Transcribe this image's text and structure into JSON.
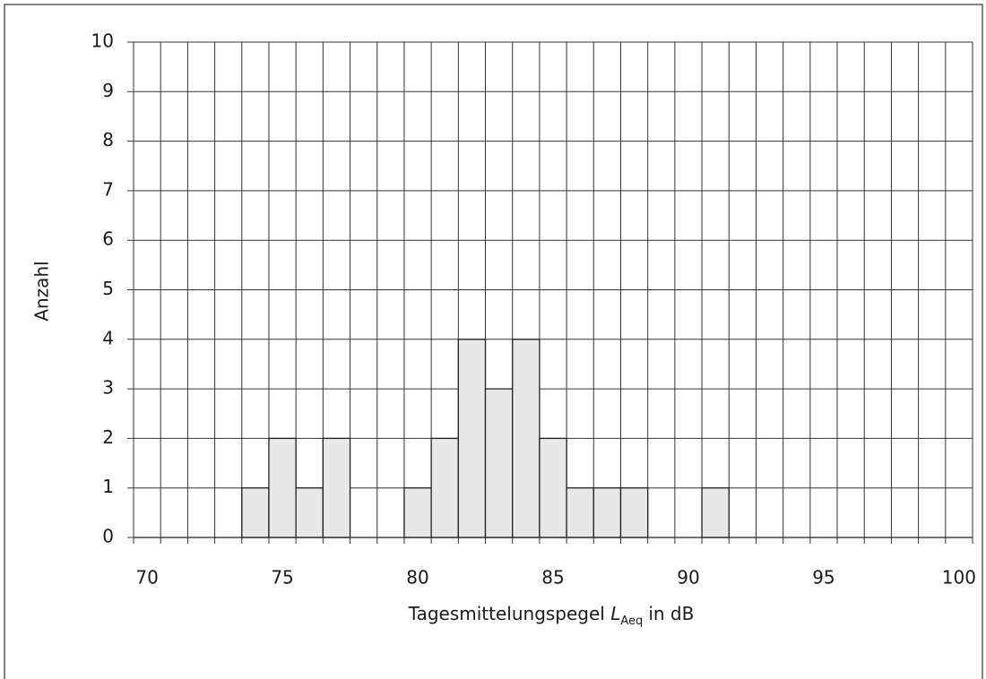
{
  "chart_data": {
    "type": "histogram",
    "x_label": {
      "text": "Tagesmittelungspegel",
      "symbol": "L",
      "subscript": "Aeq",
      "unit": "in dB"
    },
    "y_label": "Anzahl",
    "bins": [
      73.5,
      74.5,
      75.5,
      76.5,
      77.5,
      78.5,
      79.5,
      80.5,
      81.5,
      82.5,
      83.5,
      84.5,
      85.5,
      86.5,
      87.5,
      88.5,
      89.5,
      90.5,
      91.5
    ],
    "values": [
      1,
      2,
      1,
      2,
      0,
      0,
      1,
      2,
      4,
      3,
      4,
      2,
      1,
      1,
      1,
      0,
      0,
      1
    ],
    "color": "#e8e8e8",
    "xlim": [
      69.5,
      100.5
    ],
    "xticks": [
      70,
      75,
      80,
      85,
      90,
      95,
      100
    ],
    "xminorticks": [
      69.5,
      70.5,
      71.5,
      72.5,
      73.5,
      74.5,
      75.5,
      76.5,
      77.5,
      78.5,
      79.5,
      80.5,
      81.5,
      82.5,
      83.5,
      84.5,
      85.5,
      86.5,
      87.5,
      88.5,
      89.5,
      90.5,
      91.5,
      92.5,
      93.5,
      94.5,
      95.5,
      96.5,
      97.5,
      98.5,
      99.5,
      100.5
    ],
    "ylim": [
      0,
      10
    ],
    "yticks": [
      0,
      1,
      2,
      3,
      4,
      5,
      6,
      7,
      8,
      9,
      10
    ],
    "grid": true
  }
}
